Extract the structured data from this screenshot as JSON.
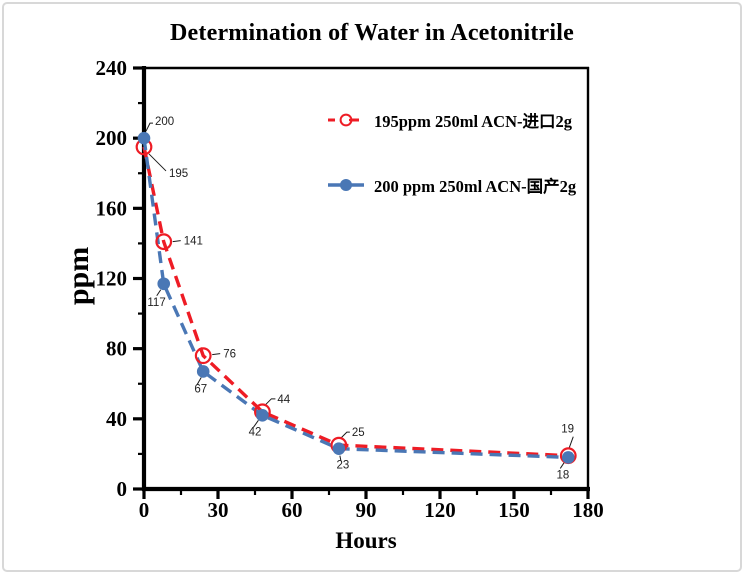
{
  "page": {
    "background": "#ffffff",
    "frame_border_color": "#d8d8d8"
  },
  "chart_data": {
    "type": "line",
    "title": "Determination of Water in Acetonitrile",
    "xlabel": "Hours",
    "ylabel": "ppm",
    "xlim": [
      0,
      180
    ],
    "ylim": [
      0,
      240
    ],
    "x_ticks": [
      0,
      30,
      60,
      90,
      120,
      150,
      180
    ],
    "y_ticks": [
      0,
      40,
      80,
      120,
      160,
      200,
      240
    ],
    "x_minor_ticks": [
      15,
      45,
      75,
      105,
      135,
      165
    ],
    "y_minor_ticks": [
      20,
      60,
      100,
      140,
      180,
      220
    ],
    "grid": false,
    "legend_position": "inside-top-right",
    "data_labels": true,
    "axis_color": "#000000",
    "x": [
      0,
      8,
      24,
      48,
      79,
      172
    ],
    "series": [
      {
        "name": "195ppm  250ml ACN-进口2g",
        "color": "#ee1c25",
        "line_style": "dashed",
        "marker": "open-circle",
        "values": [
          195,
          141,
          76,
          44,
          25,
          19
        ]
      },
      {
        "name": "200 ppm 250ml ACN-国产2g",
        "color": "#4a77b5",
        "line_style": "dashed",
        "marker": "filled-circle",
        "values": [
          200,
          117,
          67,
          42,
          23,
          18
        ]
      }
    ]
  }
}
